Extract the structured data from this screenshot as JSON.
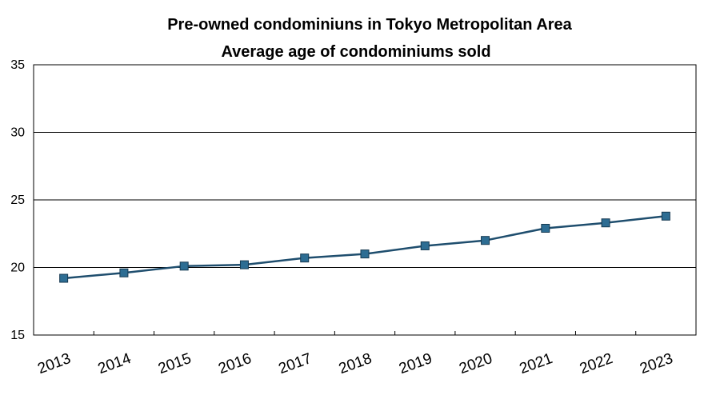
{
  "chart_data": {
    "type": "line",
    "title": "Pre-owned condominiuns in Tokyo Metropolitan Area",
    "subtitle": "Average age of condominiums sold",
    "xlabel": "",
    "ylabel": "",
    "categories": [
      "2013",
      "2014",
      "2015",
      "2016",
      "2017",
      "2018",
      "2019",
      "2020",
      "2021",
      "2022",
      "2023"
    ],
    "series": [
      {
        "values": [
          19.2,
          19.6,
          20.1,
          20.2,
          20.7,
          21.0,
          21.6,
          22.0,
          22.9,
          23.3,
          23.8
        ]
      }
    ],
    "ylim": [
      15,
      35
    ],
    "yticks": [
      "15",
      "20",
      "25",
      "30",
      "35"
    ],
    "grid": true,
    "legend": "none",
    "colors": {
      "line": "#1f4e6e",
      "marker": "#2d6d93",
      "marker_edge": "#163a52",
      "grid": "#000000"
    }
  }
}
